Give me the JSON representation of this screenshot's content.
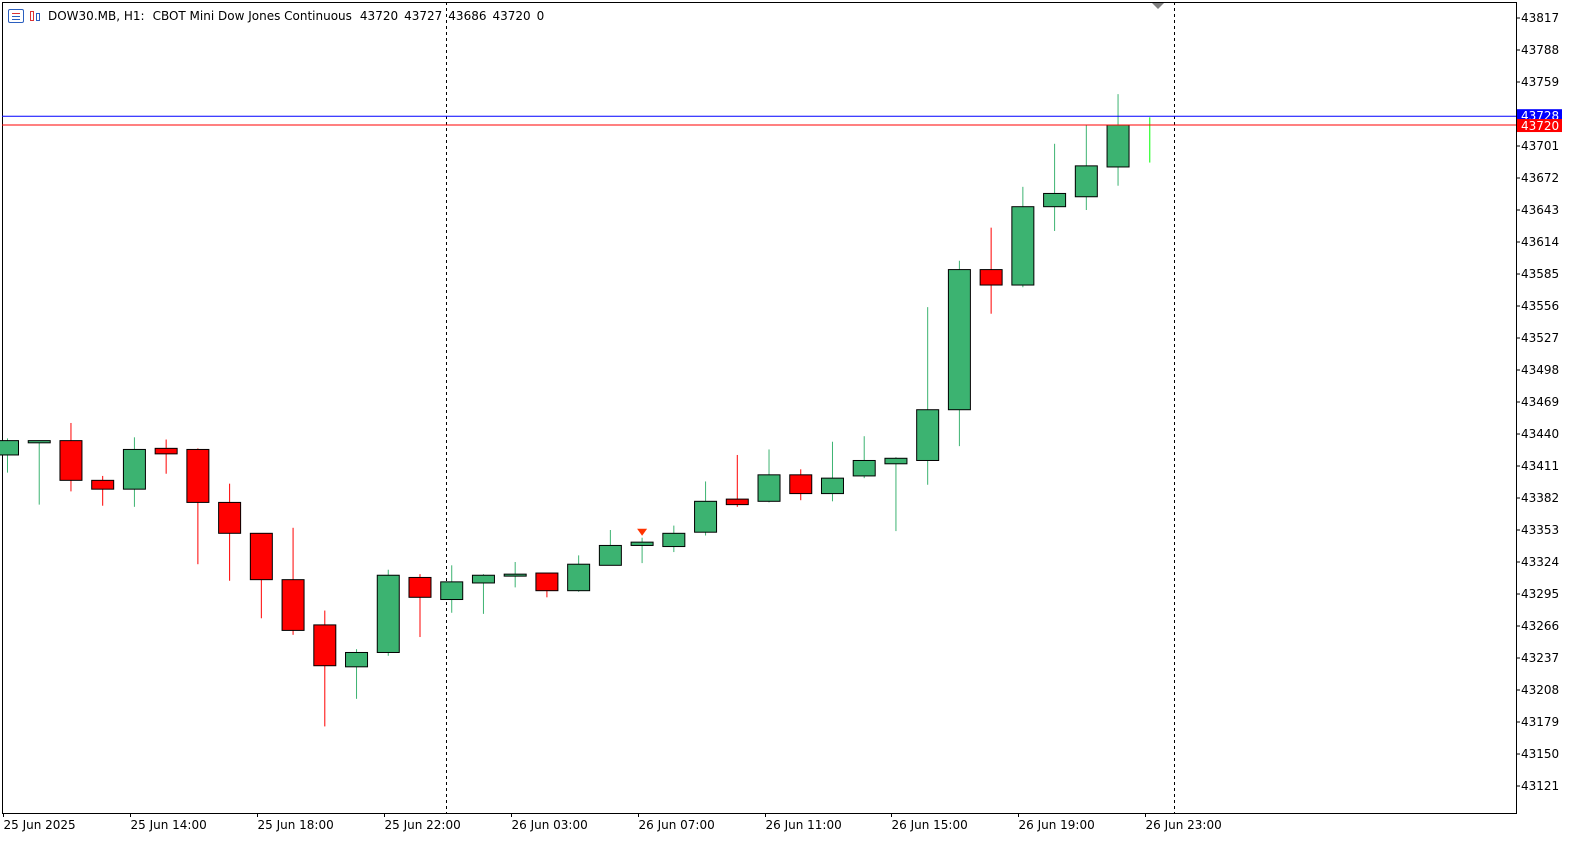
{
  "header": {
    "symbol": "DOW30.MB, H1:",
    "description": "CBOT Mini Dow Jones Continuous",
    "open": "43720",
    "high": "43727",
    "low": "43686",
    "close": "43720",
    "volume": "0"
  },
  "colors": {
    "bull": "#3cb371",
    "bear": "#ff0000",
    "ask_line": "#0000ff",
    "bid_line": "#ff0000",
    "current_tick": "#00ff00"
  },
  "chart_data": {
    "type": "candlestick",
    "timeframe": "H1",
    "y_ticks": [
      43817,
      43788,
      43759,
      43701,
      43672,
      43643,
      43614,
      43585,
      43556,
      43527,
      43498,
      43469,
      43440,
      43411,
      43382,
      43353,
      43324,
      43295,
      43266,
      43237,
      43208,
      43179,
      43150,
      43121
    ],
    "x_ticks": [
      "25 Jun 2025",
      "25 Jun 14:00",
      "25 Jun 18:00",
      "25 Jun 22:00",
      "26 Jun 03:00",
      "26 Jun 07:00",
      "26 Jun 11:00",
      "26 Jun 15:00",
      "26 Jun 19:00",
      "26 Jun 23:00"
    ],
    "ask_price": "43728",
    "bid_price": "43720",
    "ask_value": 43728,
    "bid_value": 43720,
    "candles": [
      {
        "o": 43421,
        "h": 43436,
        "l": 43405,
        "c": 43434
      },
      {
        "o": 43432,
        "h": 43434,
        "l": 43376,
        "c": 43434
      },
      {
        "o": 43434,
        "h": 43450,
        "l": 43388,
        "c": 43398
      },
      {
        "o": 43398,
        "h": 43402,
        "l": 43375,
        "c": 43390
      },
      {
        "o": 43390,
        "h": 43437,
        "l": 43374,
        "c": 43426
      },
      {
        "o": 43427,
        "h": 43435,
        "l": 43404,
        "c": 43422
      },
      {
        "o": 43426,
        "h": 43427,
        "l": 43322,
        "c": 43378
      },
      {
        "o": 43378,
        "h": 43395,
        "l": 43307,
        "c": 43350
      },
      {
        "o": 43350,
        "h": 43350,
        "l": 43273,
        "c": 43308
      },
      {
        "o": 43308,
        "h": 43355,
        "l": 43258,
        "c": 43262
      },
      {
        "o": 43267,
        "h": 43280,
        "l": 43175,
        "c": 43230
      },
      {
        "o": 43229,
        "h": 43245,
        "l": 43200,
        "c": 43242
      },
      {
        "o": 43242,
        "h": 43317,
        "l": 43239,
        "c": 43312
      },
      {
        "o": 43310,
        "h": 43313,
        "l": 43256,
        "c": 43292
      },
      {
        "o": 43290,
        "h": 43321,
        "l": 43278,
        "c": 43306
      },
      {
        "o": 43305,
        "h": 43313,
        "l": 43277,
        "c": 43312
      },
      {
        "o": 43312,
        "h": 43324,
        "l": 43301,
        "c": 43313
      },
      {
        "o": 43314,
        "h": 43314,
        "l": 43292,
        "c": 43298
      },
      {
        "o": 43298,
        "h": 43330,
        "l": 43297,
        "c": 43322
      },
      {
        "o": 43321,
        "h": 43353,
        "l": 43321,
        "c": 43339
      },
      {
        "o": 43339,
        "h": 43346,
        "l": 43323,
        "c": 43342
      },
      {
        "o": 43338,
        "h": 43357,
        "l": 43333,
        "c": 43350
      },
      {
        "o": 43351,
        "h": 43397,
        "l": 43348,
        "c": 43379
      },
      {
        "o": 43381,
        "h": 43421,
        "l": 43374,
        "c": 43376
      },
      {
        "o": 43379,
        "h": 43426,
        "l": 43378,
        "c": 43403
      },
      {
        "o": 43403,
        "h": 43408,
        "l": 43380,
        "c": 43386
      },
      {
        "o": 43386,
        "h": 43433,
        "l": 43379,
        "c": 43400
      },
      {
        "o": 43402,
        "h": 43438,
        "l": 43400,
        "c": 43416
      },
      {
        "o": 43413,
        "h": 43419,
        "l": 43352,
        "c": 43418
      },
      {
        "o": 43416,
        "h": 43555,
        "l": 43394,
        "c": 43462
      },
      {
        "o": 43462,
        "h": 43597,
        "l": 43429,
        "c": 43589
      },
      {
        "o": 43589,
        "h": 43627,
        "l": 43549,
        "c": 43575
      },
      {
        "o": 43575,
        "h": 43664,
        "l": 43573,
        "c": 43646
      },
      {
        "o": 43646,
        "h": 43703,
        "l": 43624,
        "c": 43658
      },
      {
        "o": 43655,
        "h": 43720,
        "l": 43643,
        "c": 43683
      },
      {
        "o": 43682,
        "h": 43748,
        "l": 43665,
        "c": 43720
      },
      {
        "o": 43720,
        "h": 43727,
        "l": 43686,
        "c": 43720
      }
    ]
  }
}
